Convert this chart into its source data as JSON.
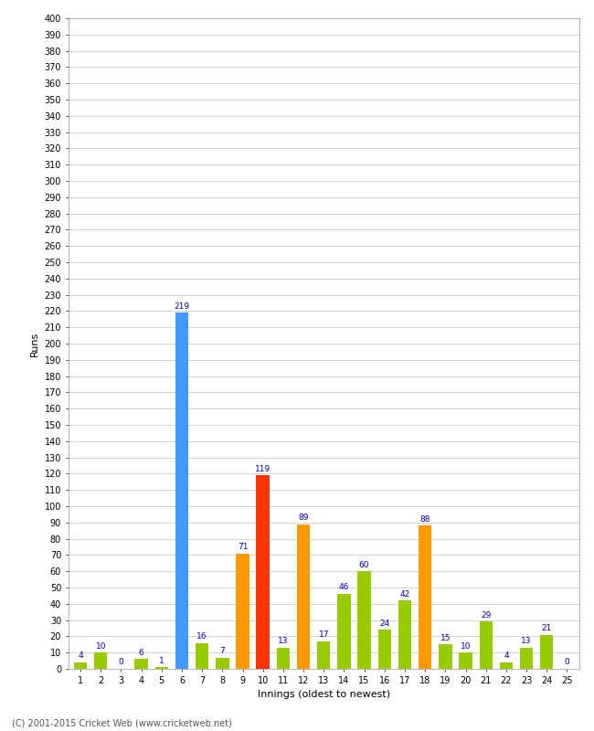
{
  "xlabel": "Innings (oldest to newest)",
  "ylabel": "Runs",
  "values": [
    4,
    10,
    0,
    6,
    1,
    219,
    16,
    7,
    71,
    119,
    13,
    89,
    17,
    46,
    60,
    24,
    42,
    88,
    15,
    10,
    29,
    4,
    13,
    21,
    0
  ],
  "colors": [
    "#99cc00",
    "#99cc00",
    "#99cc00",
    "#99cc00",
    "#99cc00",
    "#4499ff",
    "#99cc00",
    "#99cc00",
    "#ff9900",
    "#ff3300",
    "#99cc00",
    "#ff9900",
    "#99cc00",
    "#99cc00",
    "#99cc00",
    "#99cc00",
    "#99cc00",
    "#ff9900",
    "#99cc00",
    "#99cc00",
    "#99cc00",
    "#99cc00",
    "#99cc00",
    "#99cc00",
    "#99cc00"
  ],
  "categories": [
    "1",
    "2",
    "3",
    "4",
    "5",
    "6",
    "7",
    "8",
    "9",
    "10",
    "11",
    "12",
    "13",
    "14",
    "15",
    "16",
    "17",
    "18",
    "19",
    "20",
    "21",
    "22",
    "23",
    "24",
    "25"
  ],
  "ylim": [
    0,
    400
  ],
  "yticks": [
    0,
    10,
    20,
    30,
    40,
    50,
    60,
    70,
    80,
    90,
    100,
    110,
    120,
    130,
    140,
    150,
    160,
    170,
    180,
    190,
    200,
    210,
    220,
    230,
    240,
    250,
    260,
    270,
    280,
    290,
    300,
    310,
    320,
    330,
    340,
    350,
    360,
    370,
    380,
    390,
    400
  ],
  "label_color": "#0000cc",
  "background_color": "#ffffff",
  "grid_color": "#cccccc",
  "footer": "(C) 2001-2015 Cricket Web (www.cricketweb.net)"
}
